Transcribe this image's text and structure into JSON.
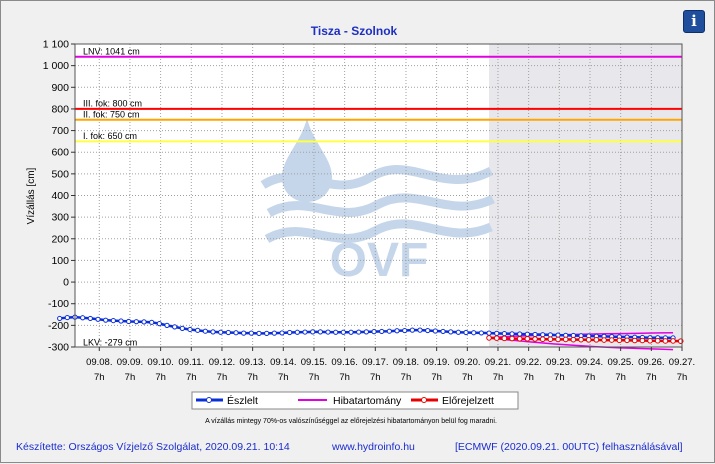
{
  "colors": {
    "background": "#f0f0f0",
    "plot_bg": "#ffffff",
    "forecast_bg": "#e8e8ec",
    "title": "#1c2fc0",
    "observed": "#0b2fd6",
    "band": "#e000e0",
    "forecast": "#e60000",
    "lnv": "#e000e0",
    "level3": "#ff0000",
    "level2": "#ffa500",
    "level1": "#ffff44",
    "grid": "#a0a0a0",
    "watermark": "#b9cfe6"
  },
  "icons": {
    "info": "info-icon"
  },
  "info_glyph": "i",
  "watermark_text": "OVF",
  "legend": {
    "observed": "Észlelt",
    "band": "Hibatartomány",
    "forecast": "Előrejelzett"
  },
  "note": "A vízállás mintegy 70%-os valószínűséggel az előrejelzési hibatartományon belül fog maradni.",
  "footer": {
    "made_by": "Készítette: Országos Vízjelző Szolgálat, 2020.09.21. 10:14",
    "website": "www.hydroinfo.hu",
    "source": "[ECMWF (2020.09.21. 00UTC) felhasználásával]"
  },
  "chart_data": {
    "type": "line",
    "title": "Tisza - Szolnok",
    "ylabel": "Vízállás [cm]",
    "ylim": [
      -300,
      1100
    ],
    "y_ticks": [
      1100,
      1000,
      900,
      800,
      700,
      600,
      500,
      400,
      300,
      200,
      100,
      0,
      -100,
      -200,
      -300
    ],
    "y_tick_labels": [
      "1 100",
      "1 000",
      "900",
      "800",
      "700",
      "600",
      "500",
      "400",
      "300",
      "200",
      "100",
      "0",
      "-100",
      "-200",
      "-300"
    ],
    "x_range_days": [
      "2020-09-07 12:00",
      "2020-09-27 07:00"
    ],
    "x_tick_dates": [
      "09.08.",
      "09.09.",
      "09.10.",
      "09.11.",
      "09.12.",
      "09.13.",
      "09.14.",
      "09.15.",
      "09.16.",
      "09.17.",
      "09.18.",
      "09.19.",
      "09.20.",
      "09.21.",
      "09.22.",
      "09.23.",
      "09.24.",
      "09.25.",
      "09.26.",
      "09.27."
    ],
    "x_tick_hour": "7h",
    "forecast_start": "09.21.",
    "grid": true,
    "reference_lines": [
      {
        "label": "LNV: 1041 cm",
        "value": 1041,
        "color": "#e000e0"
      },
      {
        "label": "III. fok: 800 cm",
        "value": 800,
        "color": "#ff0000"
      },
      {
        "label": "II. fok: 750 cm",
        "value": 750,
        "color": "#ffa500"
      },
      {
        "label": "I. fok: 650 cm",
        "value": 650,
        "color": "#ffff44"
      }
    ],
    "lkv": {
      "label": "LKV: -279 cm",
      "value": -279
    },
    "series": [
      {
        "name": "Észlelt",
        "color": "#0b2fd6",
        "start": "09.07.",
        "step_hours": 6,
        "values": [
          -168,
          -164,
          -162,
          -165,
          -168,
          -172,
          -176,
          -178,
          -180,
          -182,
          -183,
          -184,
          -186,
          -192,
          -200,
          -207,
          -214,
          -219,
          -223,
          -227,
          -230,
          -232,
          -233,
          -234,
          -236,
          -236,
          -237,
          -237,
          -236,
          -235,
          -233,
          -232,
          -231,
          -230,
          -230,
          -231,
          -232,
          -232,
          -232,
          -231,
          -230,
          -229,
          -228,
          -227,
          -225,
          -224,
          -222,
          -222,
          -224,
          -226,
          -228,
          -230,
          -232,
          -233,
          -234,
          -235,
          -236,
          -237,
          -238,
          -239,
          -240,
          -241,
          -242,
          -243,
          -244,
          -245,
          -246,
          -247,
          -248,
          -249,
          -250,
          -251,
          -252,
          -253,
          -254,
          -255,
          -256,
          -257,
          -257,
          -258,
          -258
        ]
      },
      {
        "name": "Előrejelzett",
        "color": "#e60000",
        "start": "09.21.",
        "step_hours": 6,
        "values": [
          -258,
          -259,
          -260,
          -261,
          -262,
          -262,
          -263,
          -264,
          -264,
          -265,
          -265,
          -266,
          -266,
          -267,
          -267,
          -268,
          -268,
          -269,
          -269,
          -270,
          -270,
          -271,
          -271,
          -272,
          -272,
          -273
        ]
      },
      {
        "name": "Hibatartomány",
        "color": "#e000e0",
        "start": "09.21.",
        "upper": [
          -258,
          -253,
          -250,
          -248,
          -246,
          -244,
          -243,
          -241,
          -240,
          -239,
          -238,
          -237,
          -236,
          -235,
          -234
        ],
        "lower": [
          -258,
          -265,
          -270,
          -276,
          -281,
          -286,
          -290,
          -294,
          -298,
          -301,
          -304,
          -306,
          -308,
          -310,
          -312
        ]
      }
    ]
  }
}
